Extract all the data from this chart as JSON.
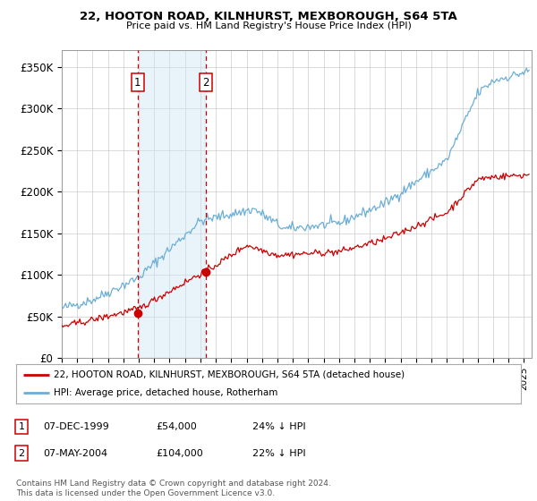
{
  "title": "22, HOOTON ROAD, KILNHURST, MEXBOROUGH, S64 5TA",
  "subtitle": "Price paid vs. HM Land Registry's House Price Index (HPI)",
  "yticks": [
    0,
    50000,
    100000,
    150000,
    200000,
    250000,
    300000,
    350000
  ],
  "ytick_labels": [
    "£0",
    "£50K",
    "£100K",
    "£150K",
    "£200K",
    "£250K",
    "£300K",
    "£350K"
  ],
  "ylim": [
    0,
    370000
  ],
  "xlim_start": 1995.0,
  "xlim_end": 2025.5,
  "hpi_color": "#6baed6",
  "price_color": "#cc0000",
  "sale1_x": 1999.93,
  "sale1_y": 54000,
  "sale2_x": 2004.35,
  "sale2_y": 104000,
  "shade_color": "#cce5f5",
  "shade_alpha": 0.45,
  "legend_line1": "22, HOOTON ROAD, KILNHURST, MEXBOROUGH, S64 5TA (detached house)",
  "legend_line2": "HPI: Average price, detached house, Rotherham",
  "table_row1": [
    "1",
    "07-DEC-1999",
    "£54,000",
    "24% ↓ HPI"
  ],
  "table_row2": [
    "2",
    "07-MAY-2004",
    "£104,000",
    "22% ↓ HPI"
  ],
  "footnote": "Contains HM Land Registry data © Crown copyright and database right 2024.\nThis data is licensed under the Open Government Licence v3.0.",
  "background_color": "#ffffff",
  "grid_color": "#cccccc"
}
